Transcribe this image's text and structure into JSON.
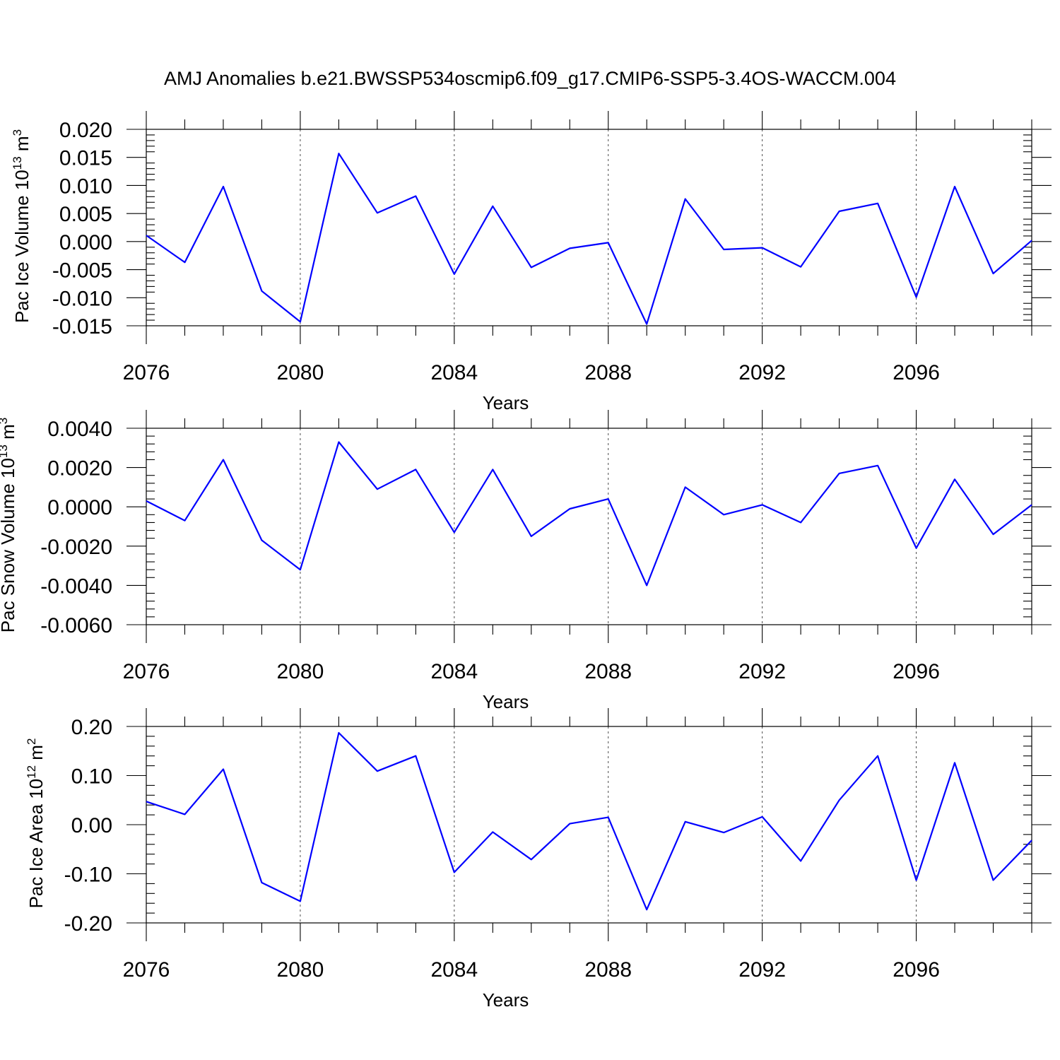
{
  "figure_title": "AMJ Anomalies b.e21.BWSSP534oscmip6.f09_g17.CMIP6-SSP5-3.4OS-WACCM.004",
  "colors": {
    "line": "#0000ff",
    "axes": "#000000",
    "background": "#ffffff"
  },
  "chart_data": [
    {
      "type": "line",
      "title": "",
      "xlabel": "Years",
      "ylabel": {
        "text": "Pac Ice Volume 10",
        "sup": "13",
        "unit": " m",
        "unit_sup": "3"
      },
      "x": [
        2076,
        2077,
        2078,
        2079,
        2080,
        2081,
        2082,
        2083,
        2084,
        2085,
        2086,
        2087,
        2088,
        2089,
        2090,
        2091,
        2092,
        2093,
        2094,
        2095,
        2096,
        2097,
        2098,
        2099
      ],
      "values": [
        0.0011,
        -0.0037,
        0.0098,
        -0.0088,
        -0.0143,
        0.0157,
        0.0051,
        0.0081,
        -0.0058,
        0.0063,
        -0.0046,
        -0.0012,
        -0.0002,
        -0.0147,
        0.0076,
        -0.0014,
        -0.0011,
        -0.0045,
        0.0054,
        0.0068,
        -0.0099,
        0.0098,
        -0.0057,
        0.0002
      ],
      "xlim": [
        2076,
        2099
      ],
      "ylim": [
        -0.015,
        0.02
      ],
      "xticks": [
        2076,
        2080,
        2084,
        2088,
        2092,
        2096
      ],
      "xtick_labels": [
        "2076",
        "2080",
        "2084",
        "2088",
        "2092",
        "2096"
      ],
      "yticks": [
        -0.015,
        -0.01,
        -0.005,
        0.0,
        0.005,
        0.01,
        0.015,
        0.02
      ],
      "ytick_labels": [
        "-0.015",
        "-0.010",
        "-0.005",
        "0.000",
        "0.005",
        "0.010",
        "0.015",
        "0.020"
      ],
      "grid": "vertical dashed at major x ticks"
    },
    {
      "type": "line",
      "title": "",
      "xlabel": "Years",
      "ylabel": {
        "text": "Pac Snow Volume 10",
        "sup": "13",
        "unit": " m",
        "unit_sup": "3"
      },
      "x": [
        2076,
        2077,
        2078,
        2079,
        2080,
        2081,
        2082,
        2083,
        2084,
        2085,
        2086,
        2087,
        2088,
        2089,
        2090,
        2091,
        2092,
        2093,
        2094,
        2095,
        2096,
        2097,
        2098,
        2099
      ],
      "values": [
        0.0003,
        -0.0007,
        0.0024,
        -0.0017,
        -0.0032,
        0.0033,
        0.0009,
        0.0019,
        -0.0013,
        0.0019,
        -0.0015,
        -0.0001,
        0.0004,
        -0.004,
        0.001,
        -0.0004,
        0.0001,
        -0.0008,
        0.0017,
        0.0021,
        -0.0021,
        0.0014,
        -0.0014,
        0.0001
      ],
      "xlim": [
        2076,
        2099
      ],
      "ylim": [
        -0.006,
        0.004
      ],
      "xticks": [
        2076,
        2080,
        2084,
        2088,
        2092,
        2096
      ],
      "xtick_labels": [
        "2076",
        "2080",
        "2084",
        "2088",
        "2092",
        "2096"
      ],
      "yticks": [
        -0.006,
        -0.004,
        -0.002,
        0.0,
        0.002,
        0.004
      ],
      "ytick_labels": [
        "-0.0060",
        "-0.0040",
        "-0.0020",
        "0.0000",
        "0.0020",
        "0.0040"
      ],
      "grid": "vertical dashed at major x ticks"
    },
    {
      "type": "line",
      "title": "",
      "xlabel": "Years",
      "ylabel": {
        "text": "Pac Ice Area 10",
        "sup": "12",
        "unit": " m",
        "unit_sup": "2"
      },
      "x": [
        2076,
        2077,
        2078,
        2079,
        2080,
        2081,
        2082,
        2083,
        2084,
        2085,
        2086,
        2087,
        2088,
        2089,
        2090,
        2091,
        2092,
        2093,
        2094,
        2095,
        2096,
        2097,
        2098,
        2099
      ],
      "values": [
        0.047,
        0.021,
        0.113,
        -0.118,
        -0.156,
        0.187,
        0.109,
        0.14,
        -0.097,
        -0.015,
        -0.071,
        0.002,
        0.015,
        -0.173,
        0.006,
        -0.016,
        0.016,
        -0.074,
        0.05,
        0.14,
        -0.113,
        0.126,
        -0.113,
        -0.032
      ],
      "xlim": [
        2076,
        2099
      ],
      "ylim": [
        -0.2,
        0.2
      ],
      "xticks": [
        2076,
        2080,
        2084,
        2088,
        2092,
        2096
      ],
      "xtick_labels": [
        "2076",
        "2080",
        "2084",
        "2088",
        "2092",
        "2096"
      ],
      "yticks": [
        -0.2,
        -0.1,
        0.0,
        0.1,
        0.2
      ],
      "ytick_labels": [
        "-0.20",
        "-0.10",
        "0.00",
        "0.10",
        "0.20"
      ],
      "grid": "vertical dashed at major x ticks"
    }
  ]
}
